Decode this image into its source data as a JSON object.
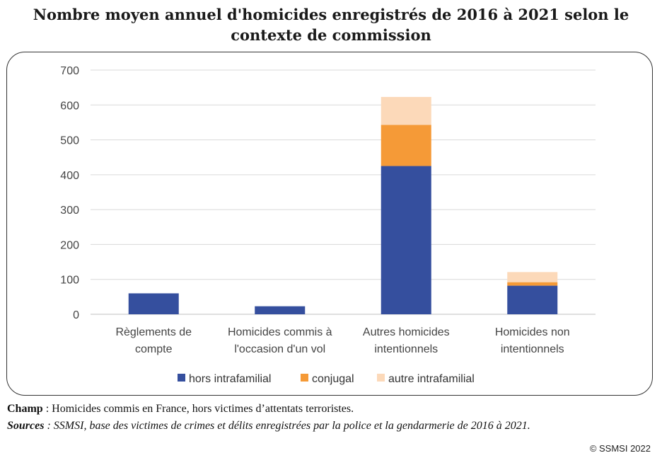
{
  "title_line1": "Nombre moyen annuel d'homicides enregistrés de 2016 à 2021 selon le",
  "title_line2": "contexte de commission",
  "chart_data": {
    "type": "bar",
    "stacked": true,
    "categories": [
      [
        "Règlements de",
        "compte"
      ],
      [
        "Homicides commis à",
        "l'occasion d'un vol"
      ],
      [
        "Autres homicides",
        "intentionnels"
      ],
      [
        "Homicides non",
        "intentionnels"
      ]
    ],
    "series": [
      {
        "name": "hors intrafamilial",
        "color": "#354f9e",
        "values": [
          60,
          23,
          425,
          82
        ]
      },
      {
        "name": "conjugal",
        "color": "#f59a37",
        "values": [
          0,
          0,
          118,
          10
        ]
      },
      {
        "name": "autre intrafamilial",
        "color": "#fcd9b9",
        "values": [
          0,
          0,
          80,
          29
        ]
      }
    ],
    "ylim": [
      0,
      700
    ],
    "yticks": [
      0,
      100,
      200,
      300,
      400,
      500,
      600,
      700
    ],
    "grid": true,
    "legend": "bottom"
  },
  "notes": {
    "champ_label": "Champ",
    "champ_text": " : Homicides commis en France, hors victimes d’attentats terroristes.",
    "sources_label": "Sources",
    "sources_text": " : SSMSI, base des victimes de crimes et délits enregistrées par la police et la gendarmerie de 2016 à 2021."
  },
  "copyright": "© SSMSI 2022"
}
